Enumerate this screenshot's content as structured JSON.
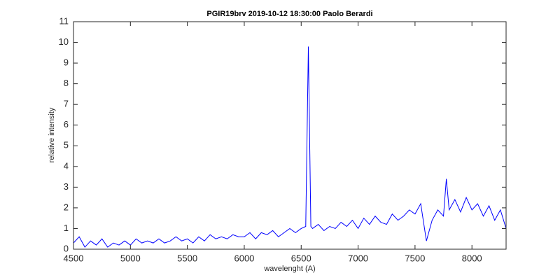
{
  "chart_data": {
    "type": "line",
    "title": "PGIR19brv 2019-10-12   18:30:00  Paolo Berardi",
    "xlabel": "wavelenght (A)",
    "ylabel": "relative intensity",
    "x": [
      4500,
      4550,
      4600,
      4650,
      4700,
      4750,
      4800,
      4850,
      4900,
      4950,
      5000,
      5050,
      5100,
      5150,
      5200,
      5250,
      5300,
      5350,
      5400,
      5450,
      5500,
      5550,
      5600,
      5650,
      5700,
      5750,
      5800,
      5850,
      5900,
      5950,
      6000,
      6050,
      6100,
      6150,
      6200,
      6250,
      6300,
      6350,
      6400,
      6450,
      6500,
      6540,
      6563,
      6585,
      6600,
      6650,
      6700,
      6750,
      6800,
      6850,
      6900,
      6950,
      7000,
      7050,
      7100,
      7150,
      7200,
      7250,
      7300,
      7350,
      7400,
      7450,
      7500,
      7550,
      7600,
      7650,
      7700,
      7750,
      7775,
      7800,
      7850,
      7900,
      7950,
      8000,
      8050,
      8100,
      8150,
      8200,
      8250,
      8300
    ],
    "series": [
      {
        "color": "#0000ff",
        "values": [
          0.3,
          0.6,
          0.1,
          0.4,
          0.2,
          0.5,
          0.1,
          0.3,
          0.2,
          0.4,
          0.2,
          0.5,
          0.3,
          0.4,
          0.3,
          0.5,
          0.3,
          0.4,
          0.6,
          0.4,
          0.5,
          0.3,
          0.6,
          0.4,
          0.7,
          0.5,
          0.6,
          0.5,
          0.7,
          0.6,
          0.6,
          0.8,
          0.5,
          0.8,
          0.7,
          0.9,
          0.6,
          0.8,
          1.0,
          0.8,
          1.0,
          1.1,
          9.8,
          1.1,
          1.0,
          1.2,
          0.9,
          1.1,
          1.0,
          1.3,
          1.1,
          1.4,
          1.0,
          1.5,
          1.2,
          1.6,
          1.3,
          1.2,
          1.7,
          1.4,
          1.6,
          1.9,
          1.7,
          2.2,
          0.4,
          1.4,
          1.9,
          1.6,
          3.4,
          1.9,
          2.4,
          1.8,
          2.5,
          1.9,
          2.2,
          1.6,
          2.1,
          1.4,
          1.9,
          1.0
        ]
      }
    ],
    "xlim": [
      4500,
      8300
    ],
    "ylim": [
      0,
      11
    ],
    "xticks": [
      4500,
      5000,
      5500,
      6000,
      6500,
      7000,
      7500,
      8000
    ],
    "yticks": [
      0,
      1,
      2,
      3,
      4,
      5,
      6,
      7,
      8,
      9,
      10,
      11
    ]
  }
}
